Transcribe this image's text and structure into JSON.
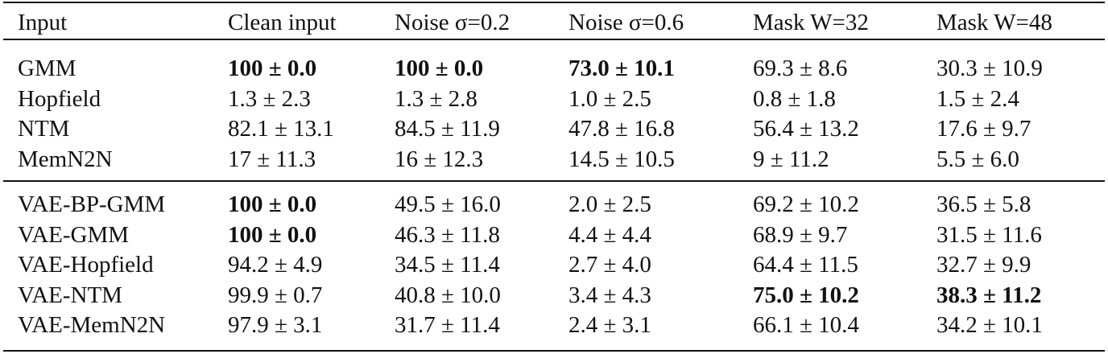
{
  "table": {
    "header": [
      "Input",
      "Clean input",
      "Noise σ=0.2",
      "Noise σ=0.6",
      "Mask W=32",
      "Mask W=48"
    ],
    "groups": [
      [
        [
          "GMM",
          {
            "text": "100 ± 0.0",
            "bold": true
          },
          {
            "text": "100 ± 0.0",
            "bold": true
          },
          {
            "text": "73.0 ± 10.1",
            "bold": true
          },
          "69.3 ± 8.6",
          "30.3 ± 10.9"
        ],
        [
          "Hopfield",
          "1.3 ± 2.3",
          "1.3 ± 2.8",
          "1.0 ± 2.5",
          "0.8 ± 1.8",
          "1.5 ± 2.4"
        ],
        [
          "NTM",
          "82.1 ± 13.1",
          "84.5 ± 11.9",
          "47.8 ± 16.8",
          "56.4 ± 13.2",
          "17.6 ± 9.7"
        ],
        [
          "MemN2N",
          "17 ± 11.3",
          "16 ± 12.3",
          "14.5 ± 10.5",
          "9 ± 11.2",
          "5.5 ± 6.0"
        ]
      ],
      [
        [
          "VAE-BP-GMM",
          {
            "text": "100 ± 0.0",
            "bold": true
          },
          "49.5 ± 16.0",
          "2.0 ± 2.5",
          "69.2 ± 10.2",
          "36.5 ± 5.8"
        ],
        [
          "VAE-GMM",
          {
            "text": "100 ± 0.0",
            "bold": true
          },
          "46.3 ± 11.8",
          "4.4 ± 4.4",
          "68.9 ± 9.7",
          "31.5 ± 11.6"
        ],
        [
          "VAE-Hopfield",
          "94.2 ± 4.9",
          "34.5 ± 11.4",
          "2.7 ± 4.0",
          "64.4 ± 11.5",
          "32.7 ± 9.9"
        ],
        [
          "VAE-NTM",
          "99.9 ± 0.7",
          "40.8 ± 10.0",
          "3.4 ± 4.3",
          {
            "text": "75.0 ± 10.2",
            "bold": true
          },
          {
            "text": "38.3 ± 11.2",
            "bold": true
          }
        ],
        [
          "VAE-MemN2N",
          "97.9 ± 3.1",
          "31.7 ± 11.4",
          "2.4 ± 3.1",
          "66.1 ± 10.4",
          "34.2 ± 10.1"
        ]
      ]
    ]
  }
}
